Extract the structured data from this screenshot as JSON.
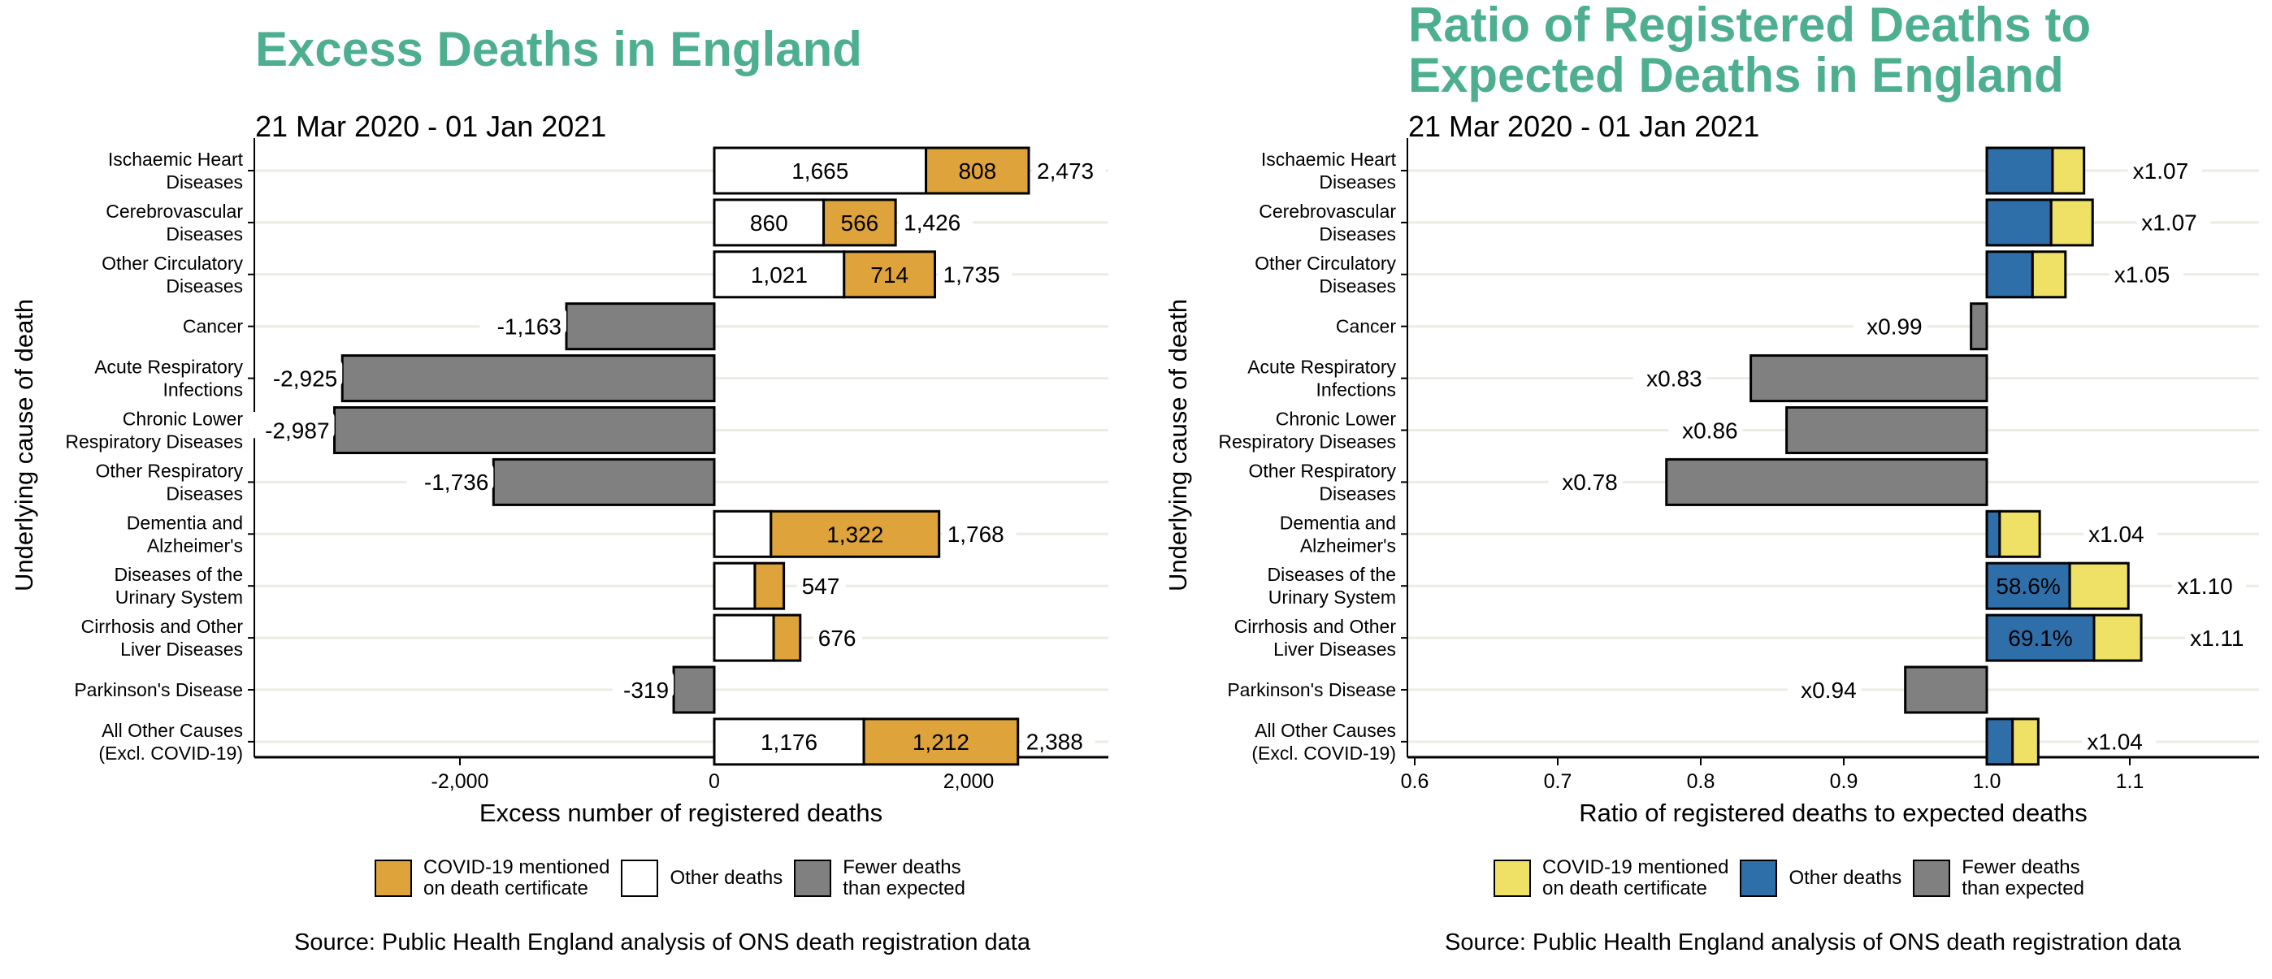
{
  "charts_meta": {
    "left_title": "Excess Deaths in England",
    "right_title_line1": "Ratio of Registered Deaths to",
    "right_title_line2": "Expected Deaths in England",
    "date_range": "21 Mar 2020 - 01 Jan 2021",
    "source": "Source: Public Health England analysis of ONS death registration data"
  },
  "colors": {
    "title": "#4DAF8F",
    "covid_orange": "#DEA33A",
    "other_white": "#FFFFFF",
    "fewer_grey": "#808080",
    "covid_yellow": "#EFE165",
    "other_blue": "#2E6FAA",
    "gridline": "#ECECE2"
  },
  "chart_data": [
    {
      "type": "bar",
      "orientation": "horizontal",
      "stacked": true,
      "title": "Excess Deaths in England",
      "subtitle": "21 Mar 2020 - 01 Jan 2021",
      "xlabel": "Excess number of registered deaths",
      "ylabel": "Underlying cause of death",
      "xlim": [
        -3617,
        3100
      ],
      "xticks": [
        -2000,
        0,
        2000
      ],
      "xtick_labels": [
        "-2,000",
        "0",
        "2,000"
      ],
      "grid": "horizontal",
      "legend_position": "bottom",
      "legend": [
        {
          "label_line1": "COVID-19 mentioned",
          "label_line2": "on death certificate",
          "color": "#DEA33A"
        },
        {
          "label_line1": "Other deaths",
          "label_line2": "",
          "color": "#FFFFFF"
        },
        {
          "label_line1": "Fewer deaths",
          "label_line2": "than expected",
          "color": "#808080"
        }
      ],
      "categories": [
        [
          "Ischaemic Heart",
          "Diseases"
        ],
        [
          "Cerebrovascular",
          "Diseases"
        ],
        [
          "Other Circulatory",
          "Diseases"
        ],
        [
          "Cancer"
        ],
        [
          "Acute Respiratory",
          "Infections"
        ],
        [
          "Chronic Lower",
          "Respiratory Diseases"
        ],
        [
          "Other Respiratory",
          "Diseases"
        ],
        [
          "Dementia and",
          "Alzheimer's"
        ],
        [
          "Diseases of the",
          "Urinary System"
        ],
        [
          "Cirrhosis and Other",
          "Liver Diseases"
        ],
        [
          "Parkinson's Disease"
        ],
        [
          "All Other Causes",
          "(Excl. COVID-19)"
        ]
      ],
      "series": [
        {
          "name": "Other deaths",
          "values": [
            1665,
            860,
            1021,
            0,
            0,
            0,
            0,
            446,
            319,
            467,
            0,
            1176
          ]
        },
        {
          "name": "COVID-19 mentioned on death certificate",
          "values": [
            808,
            566,
            714,
            0,
            0,
            0,
            0,
            1322,
            228,
            209,
            0,
            1212
          ]
        },
        {
          "name": "Fewer deaths than expected",
          "values": [
            0,
            0,
            0,
            -1163,
            -2925,
            -2987,
            -1736,
            0,
            0,
            0,
            -319,
            0
          ]
        }
      ],
      "other_labels": [
        "1,665",
        "860",
        "1,021",
        "",
        "",
        "",
        "",
        "",
        "",
        "",
        "",
        "1,176"
      ],
      "covid_labels": [
        "808",
        "566",
        "714",
        "",
        "",
        "",
        "",
        "1,322",
        "",
        "",
        "",
        "1,212"
      ],
      "total_labels": [
        "2,473",
        "1,426",
        "1,735",
        "-1,163",
        "-2,925",
        "-2,987",
        "-1,736",
        "1,768",
        "547",
        "676",
        "-319",
        "2,388"
      ]
    },
    {
      "type": "bar",
      "orientation": "horizontal",
      "stacked": true,
      "title": "Ratio of Registered Deaths to Expected Deaths in England",
      "subtitle": "21 Mar 2020 - 01 Jan 2021",
      "xlabel": "Ratio of registered deaths to expected deaths",
      "ylabel": "Underlying cause of death",
      "xlim": [
        0.595,
        1.19
      ],
      "baseline": 1.0,
      "xticks": [
        0.6,
        0.7,
        0.8,
        0.9,
        1.0,
        1.1
      ],
      "xtick_labels": [
        "0.6",
        "0.7",
        "0.8",
        "0.9",
        "1.0",
        "1.1"
      ],
      "grid": "horizontal",
      "legend_position": "bottom",
      "legend": [
        {
          "label_line1": "COVID-19 mentioned",
          "label_line2": "on death certificate",
          "color": "#EFE165"
        },
        {
          "label_line1": "Other deaths",
          "label_line2": "",
          "color": "#2E6FAA"
        },
        {
          "label_line1": "Fewer deaths",
          "label_line2": "than expected",
          "color": "#808080"
        }
      ],
      "categories": [
        [
          "Ischaemic Heart",
          "Diseases"
        ],
        [
          "Cerebrovascular",
          "Diseases"
        ],
        [
          "Other Circulatory",
          "Diseases"
        ],
        [
          "Cancer"
        ],
        [
          "Acute Respiratory",
          "Infections"
        ],
        [
          "Chronic Lower",
          "Respiratory Diseases"
        ],
        [
          "Other Respiratory",
          "Diseases"
        ],
        [
          "Dementia and",
          "Alzheimer's"
        ],
        [
          "Diseases of the",
          "Urinary System"
        ],
        [
          "Cirrhosis and Other",
          "Liver Diseases"
        ],
        [
          "Parkinson's Disease"
        ],
        [
          "All Other Causes",
          "(Excl. COVID-19)"
        ]
      ],
      "other_end": [
        1.046,
        1.045,
        1.032,
        null,
        null,
        null,
        null,
        1.009,
        1.058,
        1.075,
        null,
        1.018
      ],
      "total": [
        1.068,
        1.074,
        1.055,
        0.989,
        0.835,
        0.86,
        0.776,
        1.037,
        1.099,
        1.108,
        0.943,
        1.036
      ],
      "ratio_labels": [
        "x1.07",
        "x1.07",
        "x1.05",
        "x0.99",
        "x0.83",
        "x0.86",
        "x0.78",
        "x1.04",
        "x1.10",
        "x1.11",
        "x0.94",
        "x1.04"
      ],
      "inner_labels": [
        "",
        "",
        "",
        "",
        "",
        "",
        "",
        "",
        "58.6%",
        "69.1%",
        "",
        ""
      ]
    }
  ]
}
